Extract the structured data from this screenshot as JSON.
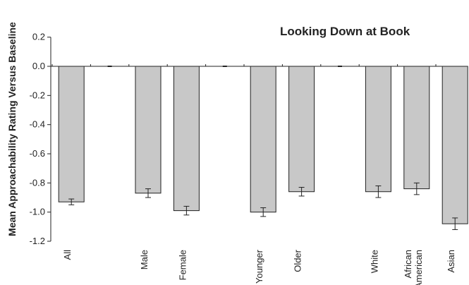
{
  "chart_data": {
    "type": "bar",
    "title": "Looking Down at Book",
    "xlabel": "",
    "ylabel": "Mean Approachability Rating Versus Baseline",
    "ylim": [
      -1.2,
      0.2
    ],
    "yticks": [
      "0.2",
      "0.0",
      "-0.2",
      "-0.4",
      "-0.6",
      "-0.8",
      "-1.0",
      "-1.2"
    ],
    "categories": [
      {
        "label": "All",
        "value": -0.93,
        "error": 0.02
      },
      {
        "label": "Male",
        "value": -0.87,
        "error": 0.03
      },
      {
        "label": "Female",
        "value": -0.99,
        "error": 0.03
      },
      {
        "label": "Younger",
        "value": -1.0,
        "error": 0.03
      },
      {
        "label": "Older",
        "value": -0.86,
        "error": 0.03
      },
      {
        "label": "White",
        "value": -0.86,
        "error": 0.04
      },
      {
        "label": "African\nAmerican",
        "value": -0.84,
        "error": 0.04
      },
      {
        "label": "Asian",
        "value": -1.08,
        "error": 0.04
      }
    ],
    "bar_color": "#c8c8c8",
    "grid": false,
    "legend": "none"
  }
}
